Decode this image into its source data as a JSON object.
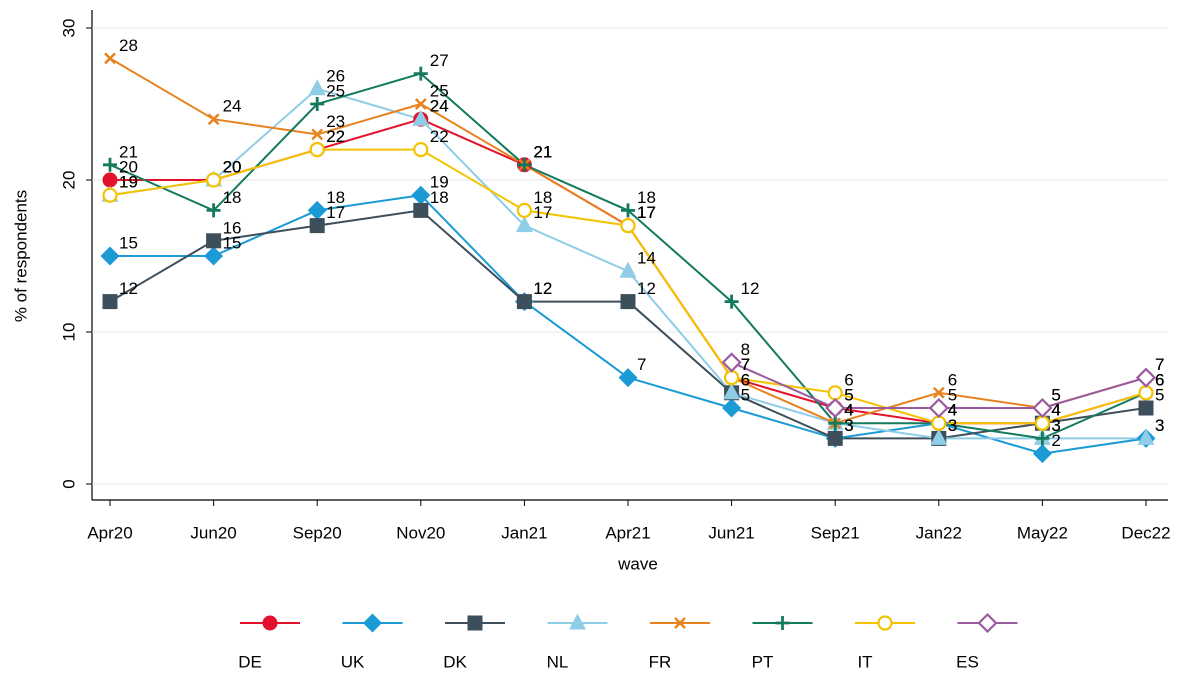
{
  "chart_data": {
    "type": "line",
    "x_label": "wave",
    "y_label": "% of respondents",
    "categories": [
      "Apr20",
      "Jun20",
      "Sep20",
      "Nov20",
      "Jan21",
      "Apr21",
      "Jun21",
      "Sep21",
      "Jan22",
      "May22",
      "Dec22"
    ],
    "ylim": [
      0,
      30
    ],
    "yticks": [
      0,
      10,
      20,
      30
    ],
    "grid": true,
    "legend": "bottom",
    "series": [
      {
        "name": "DE",
        "color": "#e3122c",
        "marker": "circle",
        "values": [
          20,
          20,
          22,
          24,
          21,
          17,
          7,
          5,
          4,
          4,
          6
        ]
      },
      {
        "name": "UK",
        "color": "#1b9bd5",
        "marker": "diamond",
        "values": [
          15,
          15,
          18,
          19,
          12,
          7,
          5,
          3,
          4,
          2,
          3
        ]
      },
      {
        "name": "DK",
        "color": "#3c4f5b",
        "marker": "square",
        "values": [
          12,
          16,
          17,
          18,
          12,
          12,
          6,
          3,
          3,
          4,
          5
        ]
      },
      {
        "name": "NL",
        "color": "#8fcde6",
        "marker": "triangle",
        "values": [
          19,
          20,
          26,
          24,
          17,
          14,
          6,
          4,
          3,
          3,
          3
        ]
      },
      {
        "name": "FR",
        "color": "#e8821e",
        "marker": "x",
        "values": [
          28,
          24,
          23,
          25,
          21,
          17,
          7,
          4,
          6,
          5,
          7
        ]
      },
      {
        "name": "PT",
        "color": "#137a5d",
        "marker": "plus",
        "values": [
          21,
          18,
          25,
          27,
          21,
          18,
          12,
          4,
          4,
          3,
          6
        ]
      },
      {
        "name": "IT",
        "color": "#f4c300",
        "marker": "hollow-circle",
        "values": [
          19,
          20,
          22,
          22,
          18,
          17,
          7,
          6,
          4,
          4,
          6
        ]
      },
      {
        "name": "ES",
        "color": "#9a5aa0",
        "marker": "hollow-diamond",
        "values": [
          null,
          null,
          null,
          null,
          null,
          null,
          8,
          5,
          5,
          5,
          7
        ]
      }
    ]
  }
}
